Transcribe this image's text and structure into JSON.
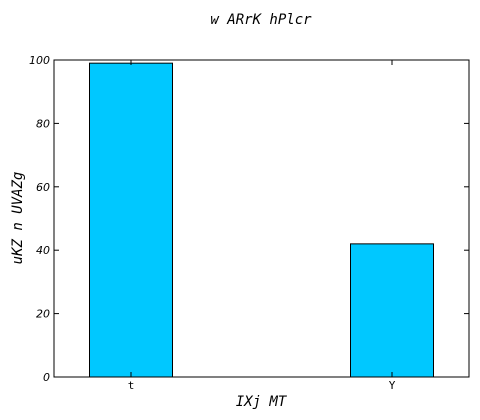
{
  "chart_data": {
    "type": "bar",
    "title": "w ARrK   hPlcr",
    "xlabel": "IXj MT",
    "ylabel": "uKZ n  UVAZg",
    "categories": [
      "t",
      "Y"
    ],
    "values": [
      99,
      42
    ],
    "ylim": [
      0,
      100
    ],
    "yticks": [
      0,
      20,
      40,
      60,
      80,
      100
    ],
    "bar_color": "#00c8ff",
    "grid": false,
    "legend": "none"
  }
}
